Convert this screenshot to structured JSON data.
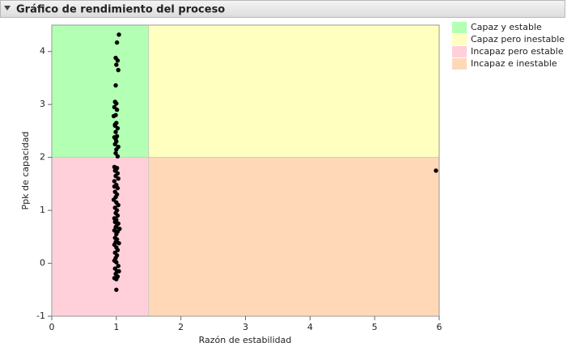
{
  "chart_data": {
    "type": "scatter",
    "title": "Gráfico de rendimiento del proceso",
    "x_label": "Razón de estabilidad",
    "y_label": "Ppk de capacidad",
    "xlim": [
      0,
      6
    ],
    "ylim": [
      -1,
      4.5
    ],
    "xticks": [
      0,
      1,
      2,
      3,
      4,
      5,
      6
    ],
    "yticks": [
      -1,
      0,
      1,
      2,
      3,
      4
    ],
    "x_threshold": 1.5,
    "y_threshold": 2,
    "regions": [
      {
        "name": "Capaz y estable",
        "color": "#b3ffb3"
      },
      {
        "name": "Capaz pero inestable",
        "color": "#ffffc0"
      },
      {
        "name": "Incapaz pero estable",
        "color": "#ffd0da"
      },
      {
        "name": "Incapaz e inestable",
        "color": "#ffd8b8"
      }
    ],
    "series": [
      {
        "color": "#000000",
        "x": [
          1.04,
          1.01,
          0.99,
          1.02,
          1.0,
          1.03,
          0.99,
          0.98,
          1.0,
          0.97,
          1.01,
          0.99,
          0.96,
          1.0,
          0.98,
          1.02,
          0.99,
          1.01,
          0.97,
          1.0,
          0.98,
          1.03,
          1.0,
          0.99,
          1.02,
          0.97,
          1.01,
          0.98,
          1.0,
          0.99,
          1.03,
          0.97,
          1.0,
          1.02,
          0.98,
          1.01,
          0.99,
          0.96,
          1.0,
          1.03,
          0.98,
          1.01,
          0.99,
          1.02,
          0.97,
          1.0,
          0.98,
          1.03,
          1.0,
          0.99,
          0.97,
          1.02,
          1.0,
          0.98,
          1.01,
          0.99,
          1.04,
          0.97,
          1.0,
          1.02,
          0.98,
          1.01,
          0.99,
          0.97,
          1.0,
          1.03,
          0.98,
          1.01,
          0.99,
          1.02,
          0.97,
          1.0,
          1.04,
          1.0,
          1.05,
          0.97,
          1.02,
          0.99,
          0.98,
          5.95
        ],
        "values": [
          4.32,
          4.17,
          3.88,
          3.83,
          3.75,
          3.65,
          3.36,
          3.05,
          3.02,
          2.95,
          2.9,
          2.8,
          2.78,
          2.65,
          2.6,
          2.55,
          2.48,
          2.4,
          2.38,
          2.3,
          2.25,
          2.2,
          2.15,
          2.08,
          2.02,
          1.82,
          1.8,
          1.75,
          1.78,
          1.65,
          1.6,
          1.55,
          1.48,
          1.42,
          1.35,
          1.3,
          1.25,
          1.2,
          1.15,
          1.1,
          1.05,
          1.0,
          0.95,
          0.9,
          0.85,
          0.82,
          0.78,
          0.75,
          0.7,
          0.68,
          0.62,
          0.6,
          0.55,
          0.48,
          0.45,
          0.4,
          0.38,
          0.35,
          0.3,
          0.25,
          0.2,
          0.15,
          0.1,
          0.05,
          0.02,
          -0.05,
          -0.1,
          -0.15,
          -0.2,
          -0.25,
          -0.28,
          -0.3,
          -0.15,
          -0.5,
          0.65,
          1.45,
          1.7,
          2.35,
          2.62,
          1.75
        ]
      }
    ]
  }
}
